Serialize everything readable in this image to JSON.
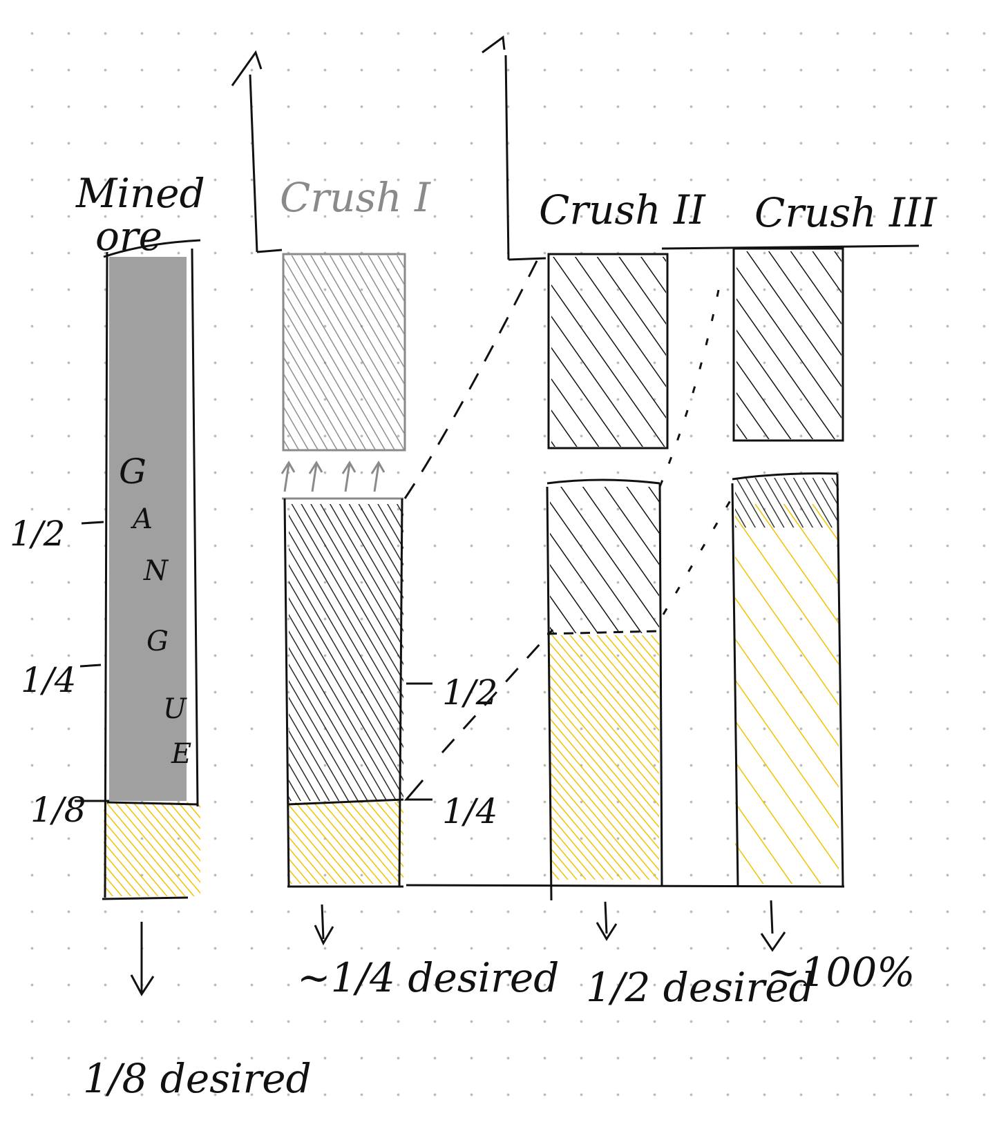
{
  "mined_ore": {
    "title_line1": "Mined",
    "title_line2": "ore",
    "gangue_letters": [
      "G",
      "A",
      "N",
      "G",
      "U",
      "E"
    ],
    "scale_labels": [
      "1/2",
      "1/4",
      "1/8"
    ],
    "fraction_desired": 0.125,
    "result": "1/8 desired"
  },
  "stages": [
    {
      "title": "Crush I",
      "title_color": "#8a8a8a",
      "scale_labels": [
        "1/2",
        "1/4"
      ],
      "fraction_desired": 0.25,
      "result": "~1/4 desired"
    },
    {
      "title": "Crush II",
      "title_color": "#111111",
      "fraction_desired": 0.5,
      "result": "1/2 desired"
    },
    {
      "title": "Crush III",
      "title_color": "#111111",
      "fraction_desired": 1.0,
      "result": "~100%"
    }
  ],
  "colors": {
    "gangue": "#a0a0a0",
    "desired": "#f2c200",
    "ink": "#111111",
    "faded": "#8a8a8a"
  }
}
